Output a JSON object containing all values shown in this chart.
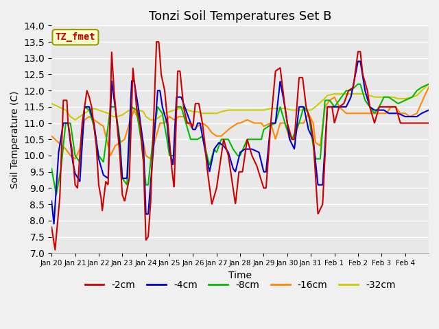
{
  "title": "Tonzi Soil Temperatures Set B",
  "xlabel": "Time",
  "ylabel": "Soil Temperature (C)",
  "ylim": [
    7.0,
    14.0
  ],
  "yticks": [
    7.0,
    7.5,
    8.0,
    8.5,
    9.0,
    9.5,
    10.0,
    10.5,
    11.0,
    11.5,
    12.0,
    12.5,
    13.0,
    13.5,
    14.0
  ],
  "legend_labels": [
    "-2cm",
    "-4cm",
    "-8cm",
    "-16cm",
    "-32cm"
  ],
  "legend_colors": [
    "#cc0000",
    "#0000cc",
    "#00bb00",
    "#ff8800",
    "#cccc00"
  ],
  "annotation_text": "TZ_fmet",
  "annotation_color": "#cc0000",
  "annotation_bg": "#ffffcc",
  "annotation_edge": "#999900",
  "bg_color": "#e8e8e8",
  "xtick_labels": [
    "Jan 20",
    "Jan 21",
    "Jan 22",
    "Jan 23",
    "Jan 24",
    "Jan 25",
    "Jan 26",
    "Jan 27",
    "Jan 28",
    "Jan 29",
    "Jan 30",
    "Jan 31",
    "Feb 1",
    "Feb 2",
    "Feb 3",
    "Feb 4"
  ]
}
